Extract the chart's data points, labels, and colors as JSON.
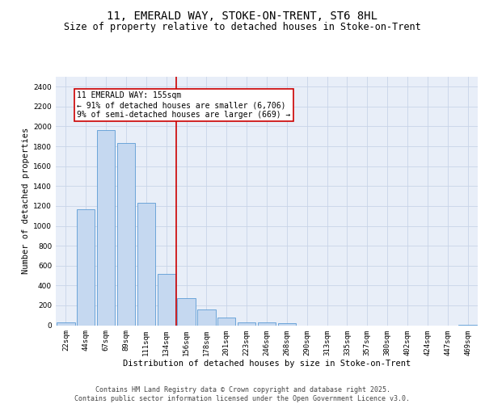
{
  "title1": "11, EMERALD WAY, STOKE-ON-TRENT, ST6 8HL",
  "title2": "Size of property relative to detached houses in Stoke-on-Trent",
  "xlabel": "Distribution of detached houses by size in Stoke-on-Trent",
  "ylabel": "Number of detached properties",
  "categories": [
    "22sqm",
    "44sqm",
    "67sqm",
    "89sqm",
    "111sqm",
    "134sqm",
    "156sqm",
    "178sqm",
    "201sqm",
    "223sqm",
    "246sqm",
    "268sqm",
    "290sqm",
    "313sqm",
    "335sqm",
    "357sqm",
    "380sqm",
    "402sqm",
    "424sqm",
    "447sqm",
    "469sqm"
  ],
  "values": [
    30,
    1170,
    1960,
    1830,
    1230,
    520,
    270,
    160,
    80,
    30,
    25,
    20,
    0,
    0,
    0,
    0,
    0,
    0,
    0,
    0,
    5
  ],
  "bar_color": "#c5d8f0",
  "bar_edge_color": "#5b9bd5",
  "vline_x_idx": 6,
  "vline_color": "#cc0000",
  "annotation_text": "11 EMERALD WAY: 155sqm\n← 91% of detached houses are smaller (6,706)\n9% of semi-detached houses are larger (669) →",
  "annotation_box_color": "#ffffff",
  "annotation_box_edge": "#cc0000",
  "ylim": [
    0,
    2500
  ],
  "yticks": [
    0,
    200,
    400,
    600,
    800,
    1000,
    1200,
    1400,
    1600,
    1800,
    2000,
    2200,
    2400
  ],
  "grid_color": "#c8d4e8",
  "bg_color": "#e8eef8",
  "footer": "Contains HM Land Registry data © Crown copyright and database right 2025.\nContains public sector information licensed under the Open Government Licence v3.0.",
  "title_fontsize": 10,
  "subtitle_fontsize": 8.5,
  "axis_label_fontsize": 7.5,
  "tick_fontsize": 6.5,
  "footer_fontsize": 6,
  "ann_fontsize": 7
}
